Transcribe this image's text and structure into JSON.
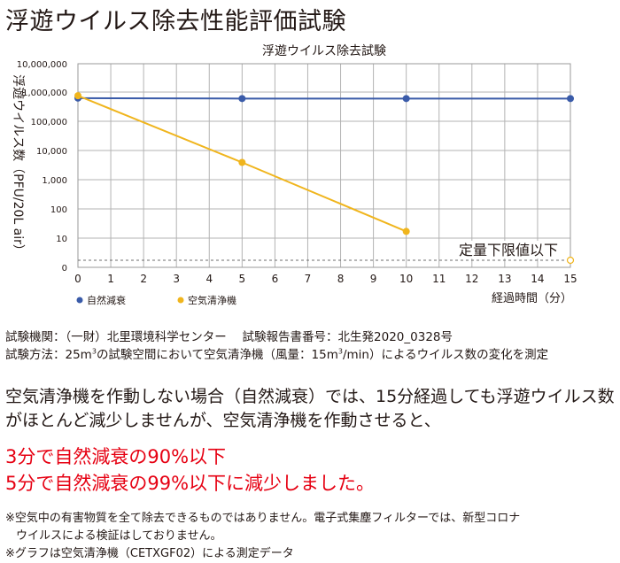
{
  "page": {
    "heading": "浮遊ウイルス除去性能評価試験",
    "info_line1": "試験機関：（一財）北里環境科学センター　 試験報告書番号：北生発2020_0328号",
    "info_line2_pre": "試験方法：25m",
    "info_line2_sup": "3",
    "info_line2_mid": "の試験空間において空気清浄機（風量：15m",
    "info_line2_sup2": "3",
    "info_line2_post": "/min）によるウイルス数の変化を測定",
    "body_line1": "空気清浄機を作動しない場合（自然減衰）では、15分経過しても浮遊ウイルス数",
    "body_line2": "がほとんど減少しませんが、空気清浄機を作動させると、",
    "highlight_line1": "3分で自然減衰の90%以下",
    "highlight_line2": "5分で自然減衰の99%以下に減少しました。",
    "note_line1": "※空気中の有害物質を全て除去できるものではありません。電子式集塵フィルターでは、新型コロナ",
    "note_line2": "ウイルスによる検証はしておりません。",
    "note_line3": "※グラフは空気清浄機（CETXGF02）による測定データ"
  },
  "chart_data": {
    "type": "line",
    "title": "浮遊ウイルス除去試験",
    "xlabel": "経過時間（分）",
    "ylabel": "浮遊ウイルス数（PFU/20L air）",
    "x_ticks": [
      0,
      1,
      2,
      3,
      4,
      5,
      6,
      7,
      8,
      9,
      10,
      11,
      12,
      13,
      14,
      15
    ],
    "xlim": [
      0,
      15
    ],
    "y_scale": "log",
    "y_ticks": [
      {
        "value": 0,
        "label": "0"
      },
      {
        "value": 10,
        "label": "10"
      },
      {
        "value": 100,
        "label": "100"
      },
      {
        "value": 1000,
        "label": "1,000"
      },
      {
        "value": 10000,
        "label": "10,000"
      },
      {
        "value": 100000,
        "label": "100,000"
      },
      {
        "value": 1000000,
        "label": "1,000,000"
      },
      {
        "value": 10000000,
        "label": "10,000,000"
      }
    ],
    "grid": true,
    "legend_position": "bottom-left",
    "series": [
      {
        "name": "自然減衰",
        "color": "#3a5ba9",
        "x": [
          0,
          5,
          10,
          15
        ],
        "y": [
          620000,
          600000,
          600000,
          600000
        ]
      },
      {
        "name": "空気清浄機",
        "color": "#f0b51d",
        "x": [
          0,
          5,
          10
        ],
        "y": [
          750000,
          3900,
          17
        ]
      }
    ],
    "limit_line": {
      "label": "定量下限値以下",
      "y": 2
    }
  }
}
